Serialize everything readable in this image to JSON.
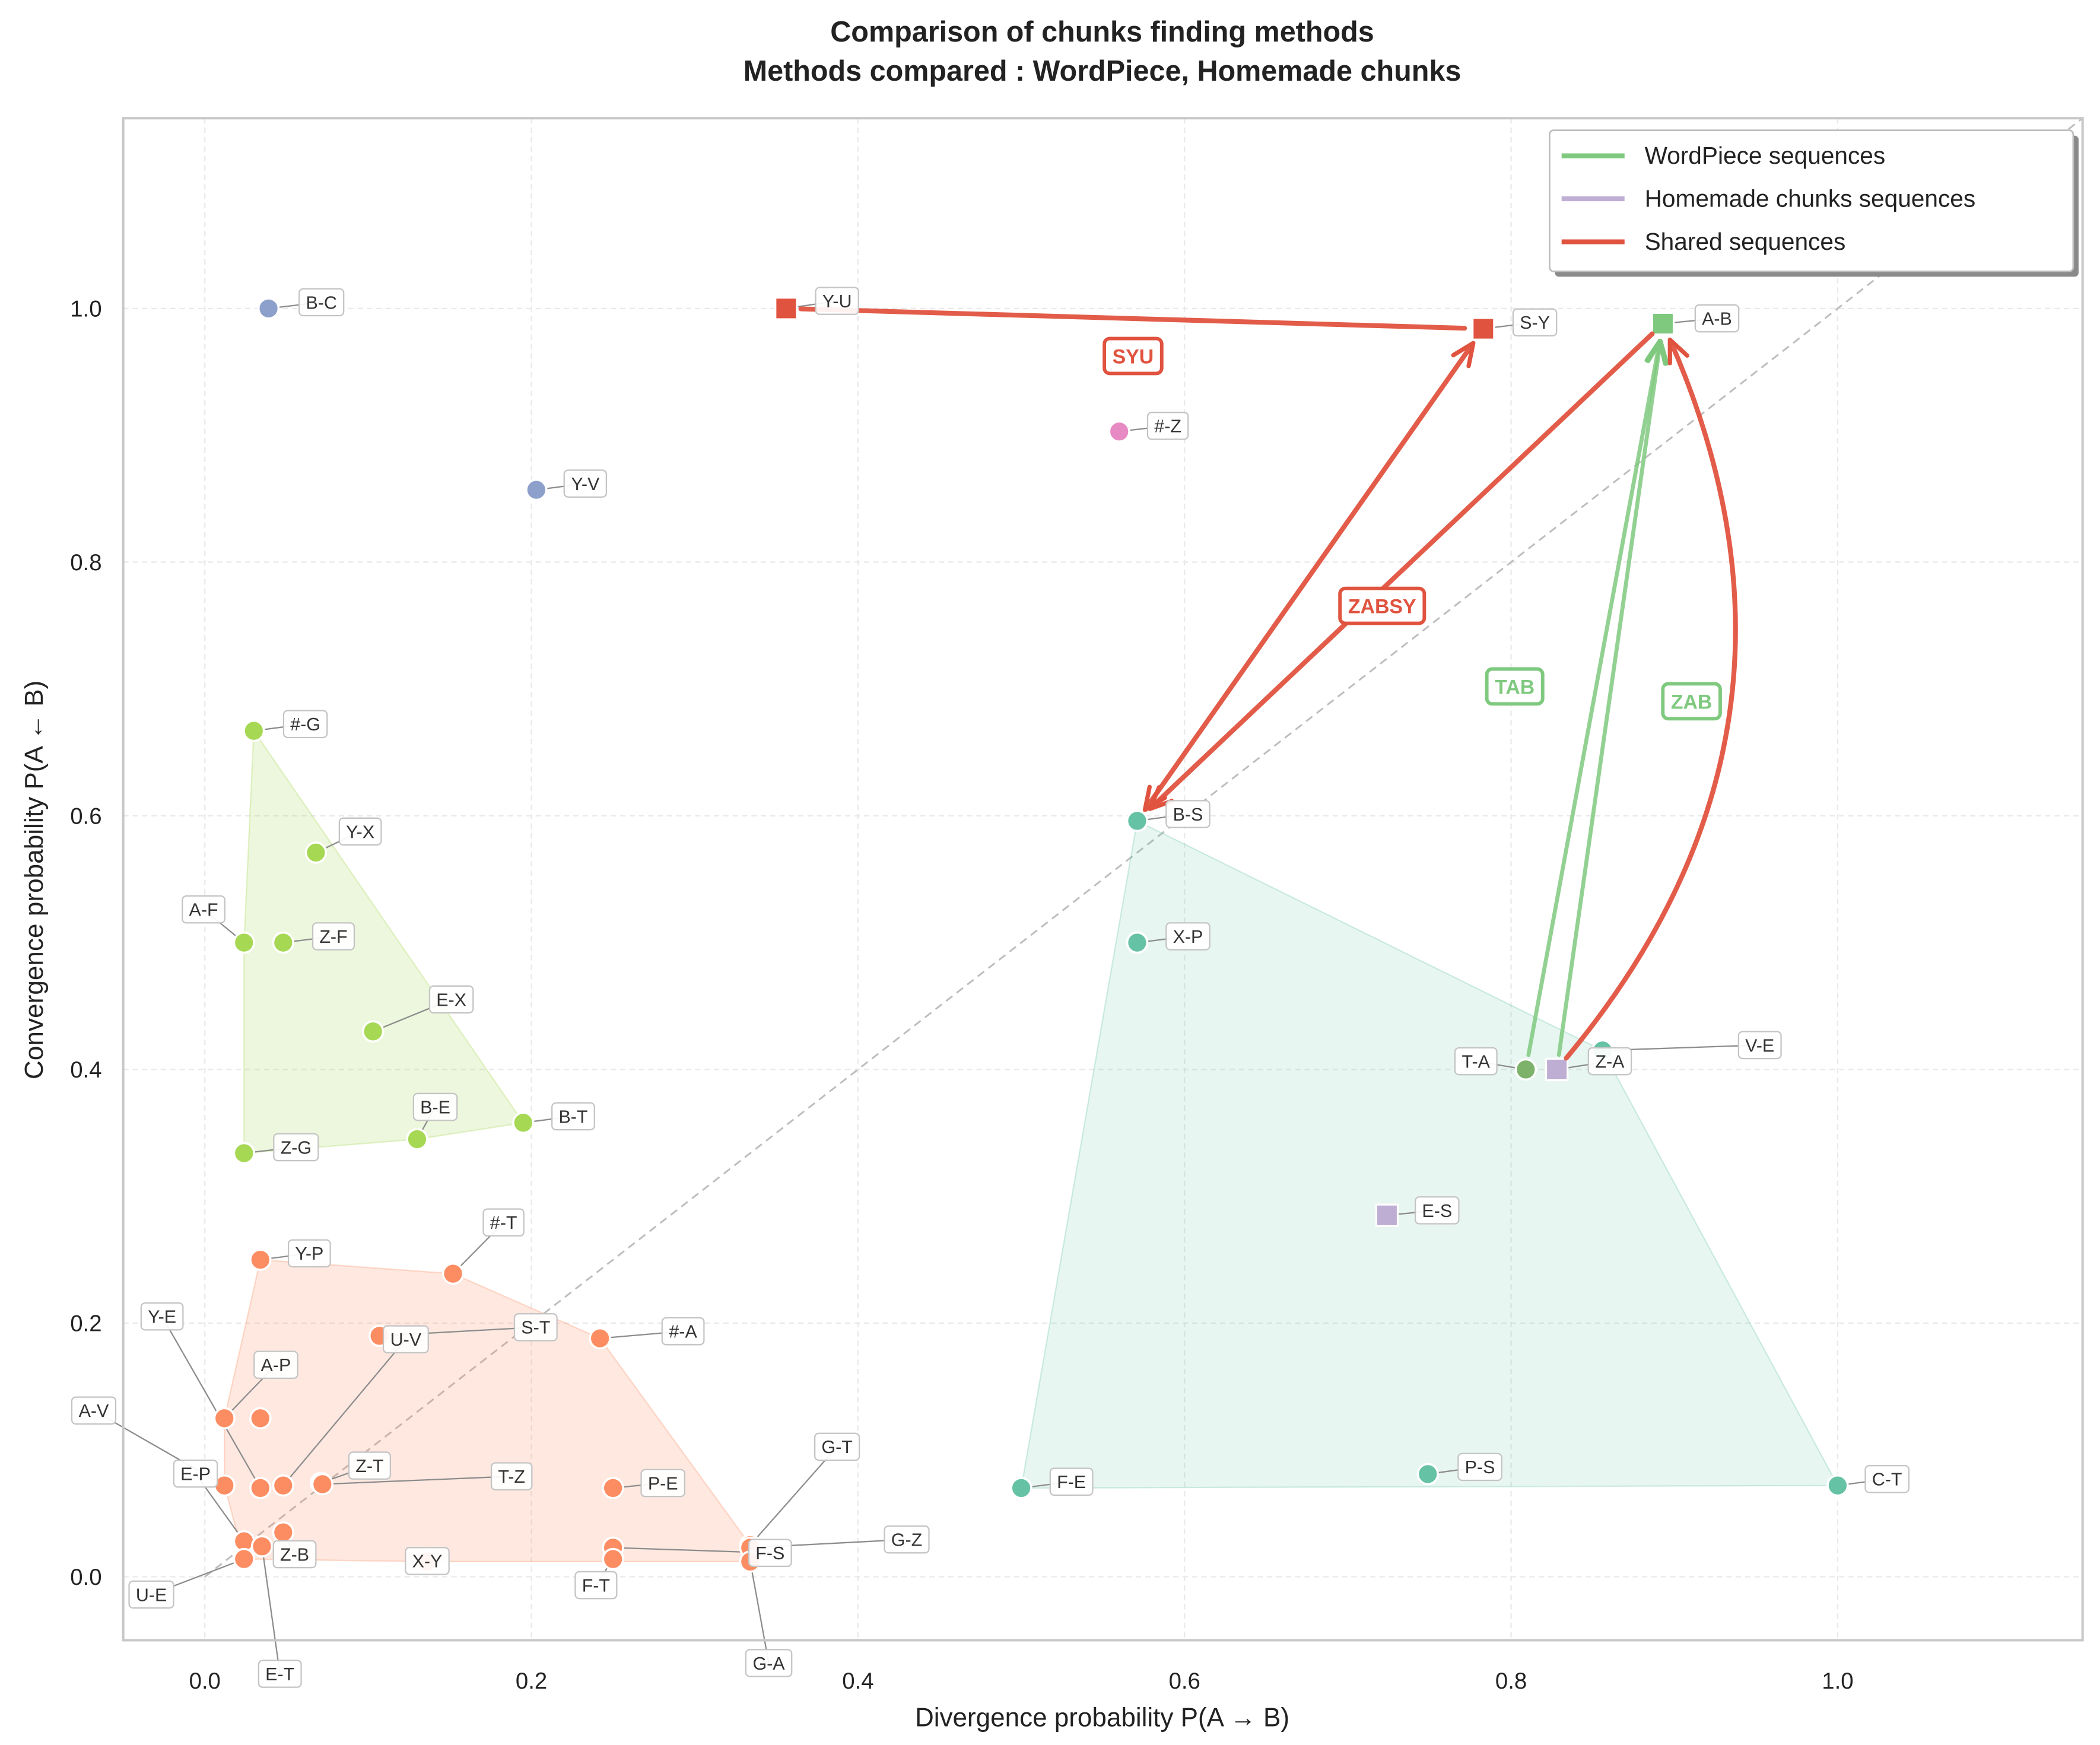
{
  "chart_data": {
    "type": "scatter",
    "title": "Comparison of chunks finding methods",
    "subtitle": "Methods compared : WordPiece, Homemade chunks",
    "xlabel": "Divergence probability P(A → B)",
    "ylabel": "Convergence probability P(A ← B)",
    "xlim": [
      -0.05,
      1.15
    ],
    "ylim": [
      -0.05,
      1.15
    ],
    "xticks": [
      0.0,
      0.2,
      0.4,
      0.6,
      0.8,
      1.0
    ],
    "xtick_labels": [
      "0.0",
      "0.2",
      "0.4",
      "0.6",
      "0.8",
      "1.0"
    ],
    "yticks": [
      0.0,
      0.2,
      0.4,
      0.6,
      0.8,
      1.0
    ],
    "ytick_labels": [
      "0.0",
      "0.2",
      "0.4",
      "0.6",
      "0.8",
      "1.0"
    ],
    "grid": true,
    "diagonal_line": true,
    "legend_position": "top-right",
    "legend": [
      {
        "label": "WordPiece sequences",
        "color": "#7fc97f"
      },
      {
        "label": "Homemade chunks sequences",
        "color": "#beaed4"
      },
      {
        "label": "Shared sequences",
        "color": "#e0533f"
      }
    ],
    "hulls": [
      {
        "group": 1,
        "color": "#a6d854"
      },
      {
        "group": 2,
        "color": "#fc8d62"
      },
      {
        "group": 3,
        "color": "#66c2a5"
      }
    ],
    "points": [
      {
        "label": "B-C",
        "x": 0.039,
        "y": 1.0,
        "color": "#8da0cb",
        "square": false,
        "group": 0
      },
      {
        "label": "Y-V",
        "x": 0.203,
        "y": 0.857,
        "color": "#8da0cb",
        "square": false,
        "group": 0
      },
      {
        "label": "#-Z",
        "x": 0.56,
        "y": 0.903,
        "color": "#e78ac3",
        "square": false,
        "group": 0
      },
      {
        "label": "Y-U",
        "x": 0.356,
        "y": 1.0,
        "color": "#e0533f",
        "square": true,
        "group": 0
      },
      {
        "label": "S-Y",
        "x": 0.783,
        "y": 0.984,
        "color": "#e0533f",
        "square": true,
        "group": 0
      },
      {
        "label": "A-B",
        "x": 0.893,
        "y": 0.988,
        "color": "#7fc97f",
        "square": true,
        "group": 0
      },
      {
        "label": "B-S",
        "x": 0.571,
        "y": 0.596,
        "color": "#66c2a5",
        "square": false,
        "group": 3
      },
      {
        "label": "X-P",
        "x": 0.571,
        "y": 0.5,
        "color": "#66c2a5",
        "square": false,
        "group": 3
      },
      {
        "label": "V-E",
        "x": 0.856,
        "y": 0.415,
        "color": "#66c2a5",
        "square": false,
        "group": 3
      },
      {
        "label": "F-E",
        "x": 0.5,
        "y": 0.07,
        "color": "#66c2a5",
        "square": false,
        "group": 3
      },
      {
        "label": "P-S",
        "x": 0.749,
        "y": 0.081,
        "color": "#66c2a5",
        "square": false,
        "group": 3
      },
      {
        "label": "C-T",
        "x": 1.0,
        "y": 0.072,
        "color": "#66c2a5",
        "square": false,
        "group": 3
      },
      {
        "label": "T-A",
        "x": 0.809,
        "y": 0.4,
        "color": "#7cb26a",
        "square": false,
        "group": 0
      },
      {
        "label": "Z-A",
        "x": 0.828,
        "y": 0.4,
        "color": "#beaed4",
        "square": true,
        "group": 0
      },
      {
        "label": "E-S",
        "x": 0.724,
        "y": 0.285,
        "color": "#beaed4",
        "square": true,
        "group": 0
      },
      {
        "label": "#-G",
        "x": 0.03,
        "y": 0.667,
        "color": "#a6d854",
        "square": false,
        "group": 1
      },
      {
        "label": "Y-X",
        "x": 0.068,
        "y": 0.571,
        "color": "#a6d854",
        "square": false,
        "group": 1
      },
      {
        "label": "A-F",
        "x": 0.024,
        "y": 0.5,
        "color": "#a6d854",
        "square": false,
        "group": 1
      },
      {
        "label": "Z-F",
        "x": 0.048,
        "y": 0.5,
        "color": "#a6d854",
        "square": false,
        "group": 1
      },
      {
        "label": "E-X",
        "x": 0.103,
        "y": 0.43,
        "color": "#a6d854",
        "square": false,
        "group": 1
      },
      {
        "label": "B-E",
        "x": 0.13,
        "y": 0.345,
        "color": "#a6d854",
        "square": false,
        "group": 1
      },
      {
        "label": "B-T",
        "x": 0.195,
        "y": 0.358,
        "color": "#a6d854",
        "square": false,
        "group": 1
      },
      {
        "label": "Z-G",
        "x": 0.024,
        "y": 0.334,
        "color": "#a6d854",
        "square": false,
        "group": 1
      },
      {
        "label": "Y-P",
        "x": 0.034,
        "y": 0.25,
        "color": "#fc8d62",
        "square": false,
        "group": 2
      },
      {
        "label": "#-T",
        "x": 0.152,
        "y": 0.239,
        "color": "#fc8d62",
        "square": false,
        "group": 2
      },
      {
        "label": "S-T",
        "x": 0.107,
        "y": 0.19,
        "color": "#fc8d62",
        "square": false,
        "group": 2
      },
      {
        "label": "#-A",
        "x": 0.242,
        "y": 0.188,
        "color": "#fc8d62",
        "square": false,
        "group": 2
      },
      {
        "label": "A-P",
        "x": 0.012,
        "y": 0.125,
        "color": "#fc8d62",
        "square": false,
        "group": 2
      },
      {
        "label": "",
        "x": 0.034,
        "y": 0.125,
        "color": "#fc8d62",
        "square": false,
        "group": 2
      },
      {
        "label": "Y-E",
        "x": 0.034,
        "y": 0.07,
        "color": "#fc8d62",
        "square": false,
        "group": 2
      },
      {
        "label": "A-V",
        "x": 0.012,
        "y": 0.072,
        "color": "#fc8d62",
        "square": false,
        "group": 2
      },
      {
        "label": "U-V",
        "x": 0.048,
        "y": 0.072,
        "color": "#fc8d62",
        "square": false,
        "group": 2
      },
      {
        "label": "Z-T",
        "x": 0.071,
        "y": 0.074,
        "color": "#fc8d62",
        "square": false,
        "group": 2
      },
      {
        "label": "T-Z",
        "x": 0.072,
        "y": 0.073,
        "color": "#fc8d62",
        "square": false,
        "group": 2
      },
      {
        "label": "P-E",
        "x": 0.25,
        "y": 0.07,
        "color": "#fc8d62",
        "square": false,
        "group": 2
      },
      {
        "label": "E-P",
        "x": 0.024,
        "y": 0.028,
        "color": "#fc8d62",
        "square": false,
        "group": 2
      },
      {
        "label": "Z-B",
        "x": 0.048,
        "y": 0.035,
        "color": "#fc8d62",
        "square": false,
        "group": 2
      },
      {
        "label": "E-T",
        "x": 0.035,
        "y": 0.024,
        "color": "#fc8d62",
        "square": false,
        "group": 2
      },
      {
        "label": "U-E",
        "x": 0.024,
        "y": 0.014,
        "color": "#fc8d62",
        "square": false,
        "group": 2
      },
      {
        "label": "X-Y",
        "x": 0.136,
        "y": 0.012,
        "color": "#fc8d62",
        "square": false,
        "group": 2
      },
      {
        "label": "F-S",
        "x": 0.25,
        "y": 0.023,
        "color": "#fc8d62",
        "square": false,
        "group": 2
      },
      {
        "label": "F-T",
        "x": 0.25,
        "y": 0.014,
        "color": "#fc8d62",
        "square": false,
        "group": 2
      },
      {
        "label": "G-T",
        "x": 0.334,
        "y": 0.025,
        "color": "#fc8d62",
        "square": false,
        "group": 2
      },
      {
        "label": "G-Z",
        "x": 0.334,
        "y": 0.023,
        "color": "#fc8d62",
        "square": false,
        "group": 2
      },
      {
        "label": "G-A",
        "x": 0.334,
        "y": 0.012,
        "color": "#fc8d62",
        "square": false,
        "group": 2
      }
    ],
    "arrows": [
      {
        "from": "Y-U",
        "to": "S-Y",
        "color": "#e0533f",
        "curved": false,
        "head_start": false,
        "head_end": false
      },
      {
        "from": "B-S",
        "to": "S-Y",
        "color": "#e0533f",
        "curved": false,
        "head_start": true,
        "head_end": true
      },
      {
        "from": "A-B",
        "to": "B-S",
        "color": "#e0533f",
        "curved": false,
        "head_start": false,
        "head_end": true
      },
      {
        "from": "T-A",
        "to": "A-B",
        "color": "#7fc97f",
        "curved": false,
        "head_start": false,
        "head_end": true
      },
      {
        "from": "Z-A",
        "to": "A-B",
        "color": "#7fc97f",
        "curved": false,
        "head_start": false,
        "head_end": true
      },
      {
        "from": "Z-A",
        "to": "A-B",
        "color": "#e0533f",
        "curved": true,
        "head_start": false,
        "head_end": true
      }
    ],
    "sequences": [
      {
        "text": "SYU",
        "color": "#e0533f"
      },
      {
        "text": "ZABSY",
        "color": "#e0533f"
      },
      {
        "text": "TAB",
        "color": "#7fc97f"
      },
      {
        "text": "ZAB",
        "color": "#7fc97f"
      }
    ]
  }
}
